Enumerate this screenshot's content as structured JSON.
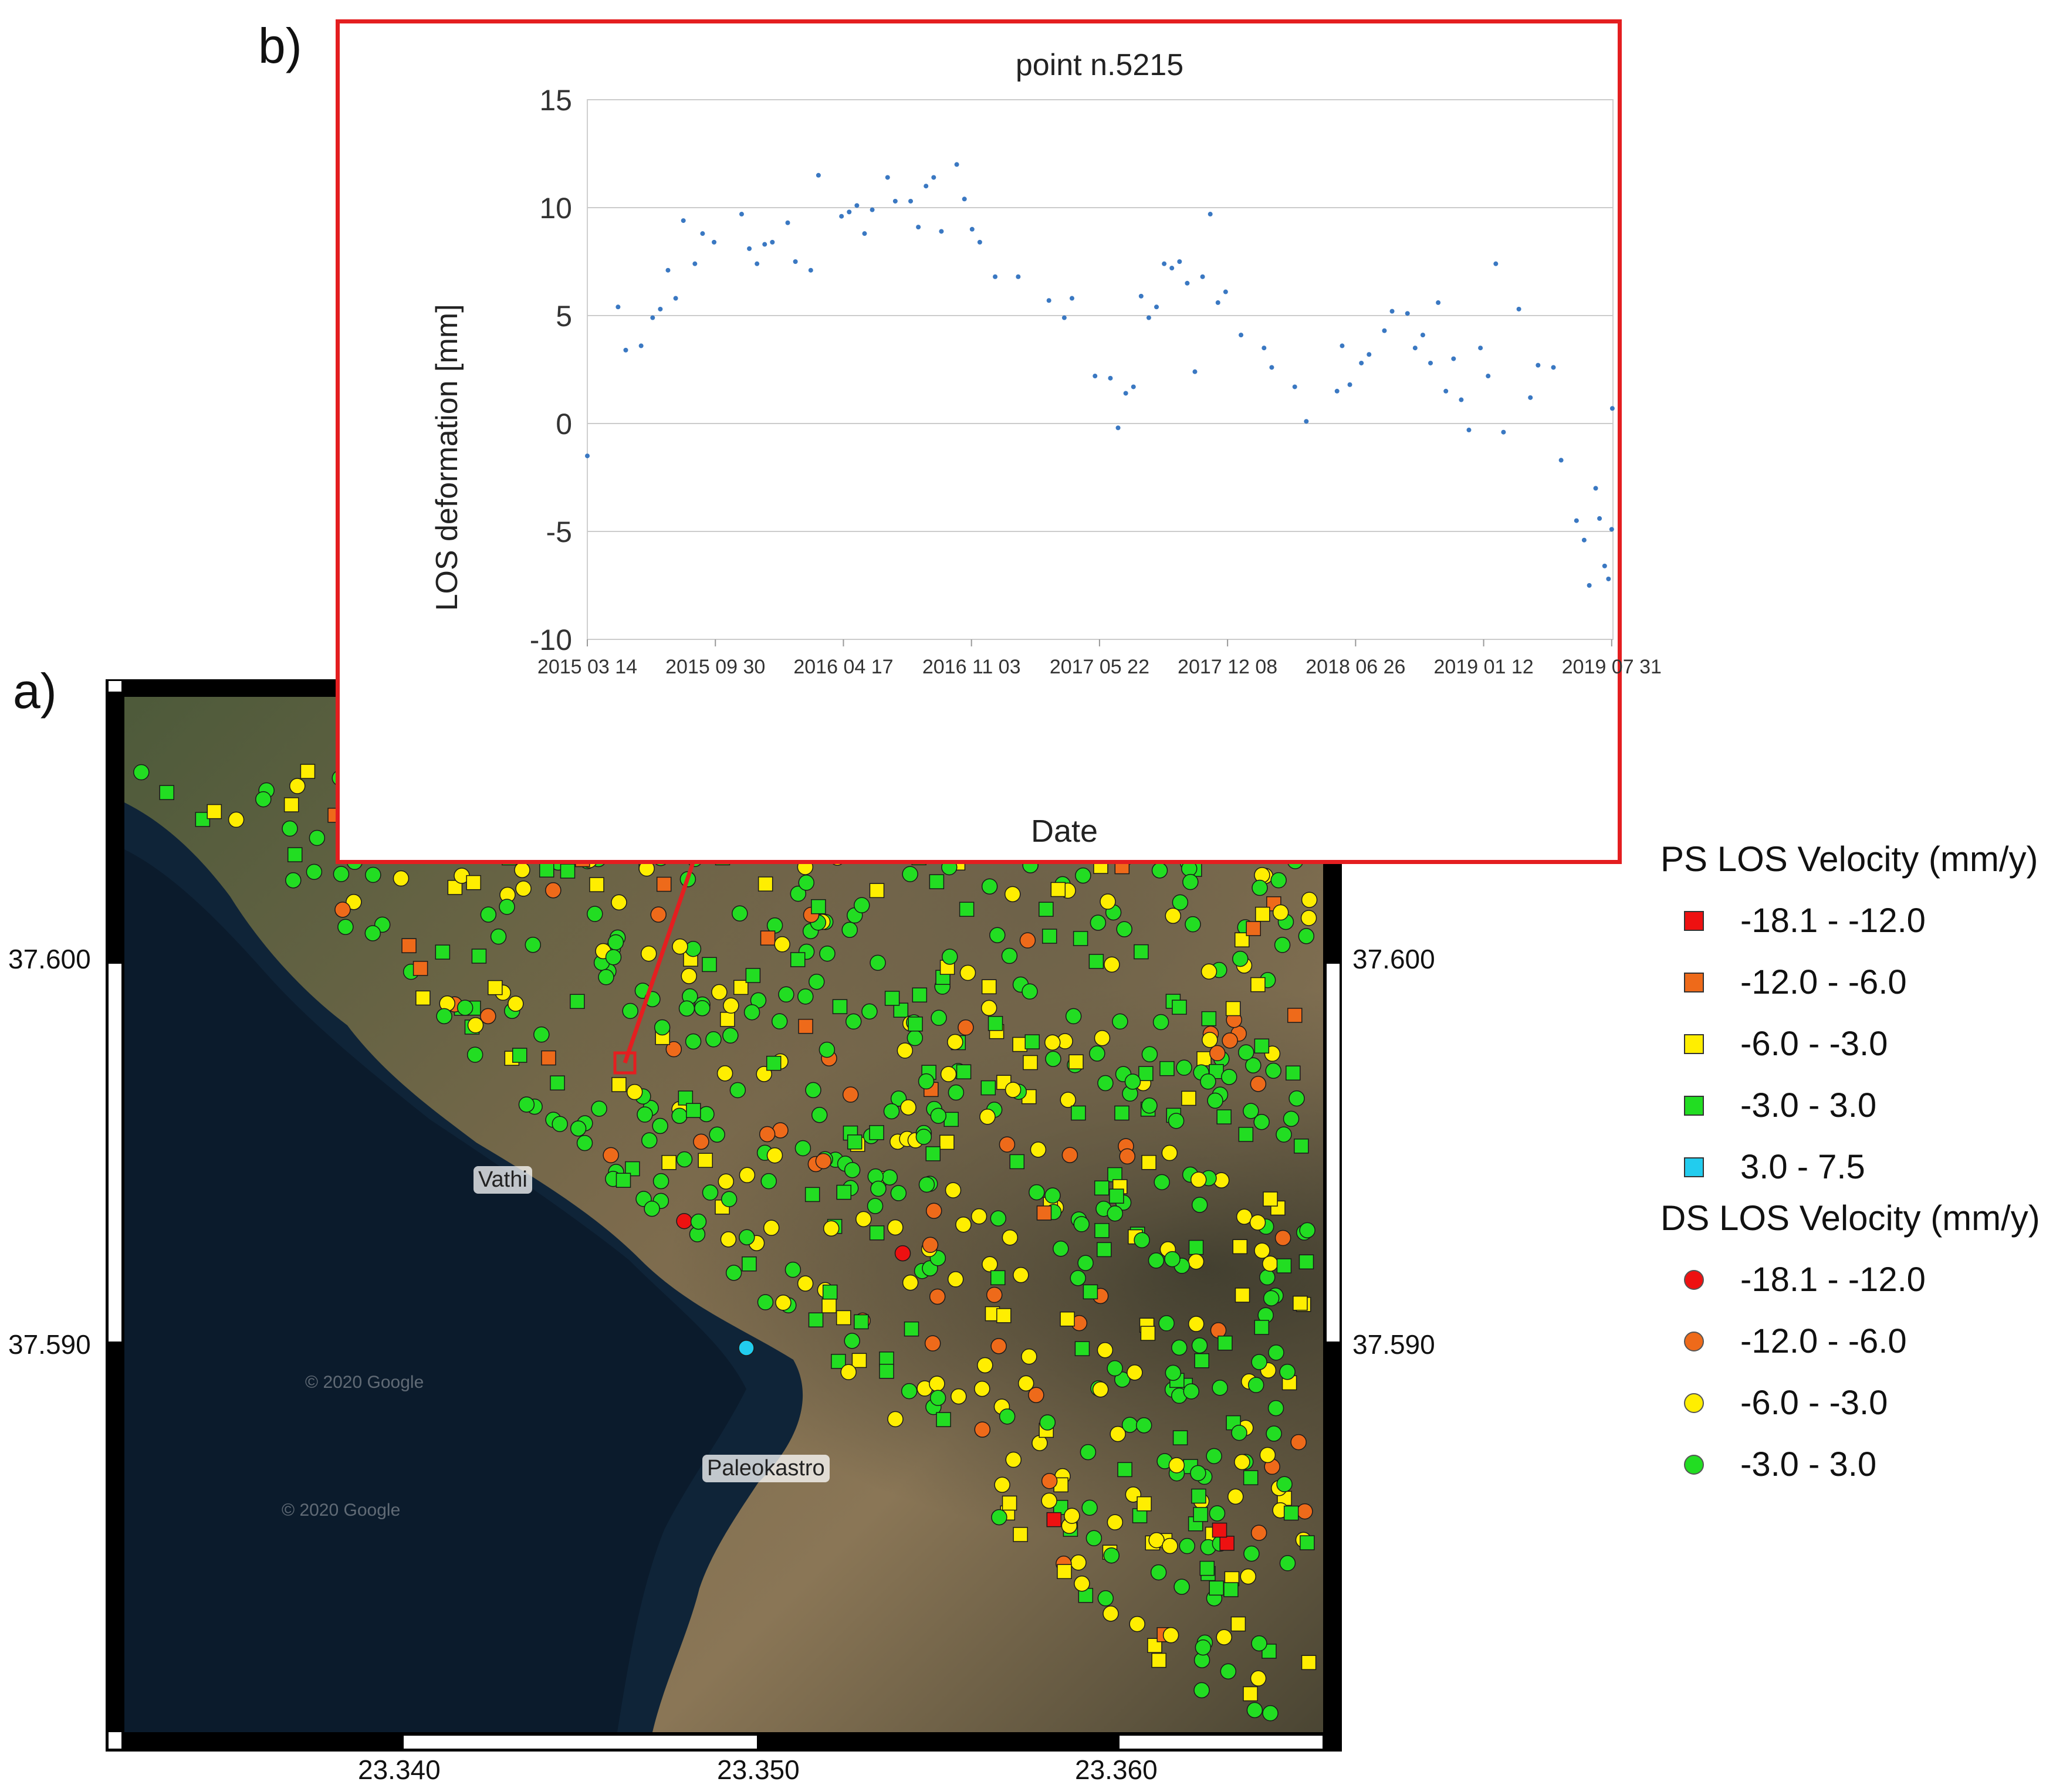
{
  "panels": {
    "a": "a)",
    "b": "b)"
  },
  "map": {
    "places": [
      {
        "name": "Vathi"
      },
      {
        "name": "Paleokastro"
      }
    ],
    "watermarks": [
      "© 2020 Google",
      "© 2020 Google"
    ],
    "lat_ticks": [
      "37.600",
      "37.590"
    ],
    "lon_ticks": [
      "23.340",
      "23.350",
      "23.360"
    ],
    "colors": {
      "green": "#22dd22",
      "yellow": "#ffee00",
      "orange": "#ee6a1a",
      "red": "#ee1111",
      "cyan": "#22ccee"
    },
    "highlighted_point": "point n.5215"
  },
  "chart_data": {
    "type": "scatter",
    "title": "point n.5215",
    "xlabel": "Date",
    "ylabel": "LOS deformation [mm]",
    "ylim": [
      -10,
      15
    ],
    "yticks": [
      -10,
      -5,
      0,
      5,
      10,
      15
    ],
    "xlim": [
      "2015-03-14",
      "2019-08-02"
    ],
    "xtick_labels": [
      "2015 03 14",
      "2015 09 30",
      "2016 04 17",
      "2016 11 03",
      "2017 05 22",
      "2017 12 08",
      "2018 06 26",
      "2019 01 12",
      "2019 07 31"
    ],
    "xtick_dates": [
      "2015-03-14",
      "2015-09-30",
      "2016-04-17",
      "2016-11-03",
      "2017-05-22",
      "2017-12-08",
      "2018-06-26",
      "2019-01-12",
      "2019-07-31"
    ],
    "grid": "horizontal",
    "marker_color": "#3a78c2",
    "points": [
      {
        "x": "2015-03-14",
        "y": -1.5
      },
      {
        "x": "2015-05-01",
        "y": 5.4
      },
      {
        "x": "2015-05-13",
        "y": 3.4
      },
      {
        "x": "2015-06-06",
        "y": 3.6
      },
      {
        "x": "2015-06-24",
        "y": 4.9
      },
      {
        "x": "2015-07-06",
        "y": 5.3
      },
      {
        "x": "2015-07-18",
        "y": 7.1
      },
      {
        "x": "2015-07-30",
        "y": 5.8
      },
      {
        "x": "2015-08-11",
        "y": 9.4
      },
      {
        "x": "2015-08-29",
        "y": 7.4
      },
      {
        "x": "2015-09-10",
        "y": 8.8
      },
      {
        "x": "2015-09-28",
        "y": 8.4
      },
      {
        "x": "2015-11-10",
        "y": 9.7
      },
      {
        "x": "2015-11-22",
        "y": 8.1
      },
      {
        "x": "2015-12-04",
        "y": 7.4
      },
      {
        "x": "2015-12-16",
        "y": 8.3
      },
      {
        "x": "2015-12-28",
        "y": 8.4
      },
      {
        "x": "2016-01-21",
        "y": 9.3
      },
      {
        "x": "2016-02-02",
        "y": 7.5
      },
      {
        "x": "2016-02-26",
        "y": 7.1
      },
      {
        "x": "2016-03-09",
        "y": 11.5
      },
      {
        "x": "2016-04-14",
        "y": 9.6
      },
      {
        "x": "2016-04-26",
        "y": 9.8
      },
      {
        "x": "2016-05-08",
        "y": 10.1
      },
      {
        "x": "2016-05-20",
        "y": 8.8
      },
      {
        "x": "2016-06-01",
        "y": 9.9
      },
      {
        "x": "2016-06-25",
        "y": 11.4
      },
      {
        "x": "2016-07-07",
        "y": 10.3
      },
      {
        "x": "2016-07-31",
        "y": 10.3
      },
      {
        "x": "2016-08-12",
        "y": 9.1
      },
      {
        "x": "2016-08-24",
        "y": 11.0
      },
      {
        "x": "2016-09-05",
        "y": 11.4
      },
      {
        "x": "2016-09-17",
        "y": 8.9
      },
      {
        "x": "2016-10-11",
        "y": 12.0
      },
      {
        "x": "2016-10-23",
        "y": 10.4
      },
      {
        "x": "2016-11-04",
        "y": 9.0
      },
      {
        "x": "2016-11-16",
        "y": 8.4
      },
      {
        "x": "2016-12-10",
        "y": 6.8
      },
      {
        "x": "2017-01-15",
        "y": 6.8
      },
      {
        "x": "2017-03-04",
        "y": 5.7
      },
      {
        "x": "2017-03-28",
        "y": 4.9
      },
      {
        "x": "2017-04-09",
        "y": 5.8
      },
      {
        "x": "2017-05-15",
        "y": 2.2
      },
      {
        "x": "2017-06-08",
        "y": 2.1
      },
      {
        "x": "2017-06-20",
        "y": -0.2
      },
      {
        "x": "2017-07-02",
        "y": 1.4
      },
      {
        "x": "2017-07-14",
        "y": 1.7
      },
      {
        "x": "2017-07-26",
        "y": 5.9
      },
      {
        "x": "2017-08-07",
        "y": 4.9
      },
      {
        "x": "2017-08-19",
        "y": 5.4
      },
      {
        "x": "2017-08-31",
        "y": 7.4
      },
      {
        "x": "2017-09-12",
        "y": 7.2
      },
      {
        "x": "2017-09-24",
        "y": 7.5
      },
      {
        "x": "2017-10-06",
        "y": 6.5
      },
      {
        "x": "2017-10-18",
        "y": 2.4
      },
      {
        "x": "2017-10-30",
        "y": 6.8
      },
      {
        "x": "2017-11-11",
        "y": 9.7
      },
      {
        "x": "2017-11-23",
        "y": 5.6
      },
      {
        "x": "2017-12-05",
        "y": 6.1
      },
      {
        "x": "2017-12-29",
        "y": 4.1
      },
      {
        "x": "2018-02-03",
        "y": 3.5
      },
      {
        "x": "2018-02-15",
        "y": 2.6
      },
      {
        "x": "2018-03-23",
        "y": 1.7
      },
      {
        "x": "2018-04-10",
        "y": 0.1
      },
      {
        "x": "2018-05-28",
        "y": 1.5
      },
      {
        "x": "2018-06-05",
        "y": 3.6
      },
      {
        "x": "2018-06-17",
        "y": 1.8
      },
      {
        "x": "2018-07-05",
        "y": 2.8
      },
      {
        "x": "2018-07-17",
        "y": 3.2
      },
      {
        "x": "2018-08-10",
        "y": 4.3
      },
      {
        "x": "2018-08-22",
        "y": 5.2
      },
      {
        "x": "2018-09-15",
        "y": 5.1
      },
      {
        "x": "2018-09-27",
        "y": 3.5
      },
      {
        "x": "2018-10-09",
        "y": 4.1
      },
      {
        "x": "2018-10-21",
        "y": 2.8
      },
      {
        "x": "2018-11-02",
        "y": 5.6
      },
      {
        "x": "2018-11-14",
        "y": 1.5
      },
      {
        "x": "2018-11-26",
        "y": 3.0
      },
      {
        "x": "2018-12-08",
        "y": 1.1
      },
      {
        "x": "2018-12-20",
        "y": -0.3
      },
      {
        "x": "2019-01-07",
        "y": 3.5
      },
      {
        "x": "2019-01-19",
        "y": 2.2
      },
      {
        "x": "2019-01-31",
        "y": 7.4
      },
      {
        "x": "2019-02-12",
        "y": -0.4
      },
      {
        "x": "2019-03-08",
        "y": 5.3
      },
      {
        "x": "2019-03-26",
        "y": 1.2
      },
      {
        "x": "2019-04-07",
        "y": 2.7
      },
      {
        "x": "2019-05-01",
        "y": 2.6
      },
      {
        "x": "2019-05-13",
        "y": -1.7
      },
      {
        "x": "2019-06-06",
        "y": -4.5
      },
      {
        "x": "2019-06-18",
        "y": -5.4
      },
      {
        "x": "2019-06-26",
        "y": -7.5
      },
      {
        "x": "2019-07-06",
        "y": -3.0
      },
      {
        "x": "2019-07-12",
        "y": -4.4
      },
      {
        "x": "2019-07-20",
        "y": -6.6
      },
      {
        "x": "2019-07-26",
        "y": -7.2
      },
      {
        "x": "2019-07-31",
        "y": -4.9
      },
      {
        "x": "2019-08-01",
        "y": 0.7
      }
    ]
  },
  "legend": {
    "ps_title": "PS LOS Velocity (mm/y)",
    "ps_items": [
      {
        "label": "-18.1 - -12.0",
        "color": "#ee1111"
      },
      {
        "label": "-12.0 - -6.0",
        "color": "#ee6a1a"
      },
      {
        "label": "-6.0 - -3.0",
        "color": "#ffee00"
      },
      {
        "label": "-3.0 - 3.0",
        "color": "#22dd22"
      },
      {
        "label": "3.0 - 7.5",
        "color": "#22ccee"
      }
    ],
    "ds_title": "DS LOS Velocity (mm/y)",
    "ds_items": [
      {
        "label": "-18.1 - -12.0",
        "color": "#ee1111"
      },
      {
        "label": "-12.0 - -6.0",
        "color": "#ee6a1a"
      },
      {
        "label": "-6.0 - -3.0",
        "color": "#ffee00"
      },
      {
        "label": "-3.0 - 3.0",
        "color": "#22dd22"
      }
    ]
  }
}
